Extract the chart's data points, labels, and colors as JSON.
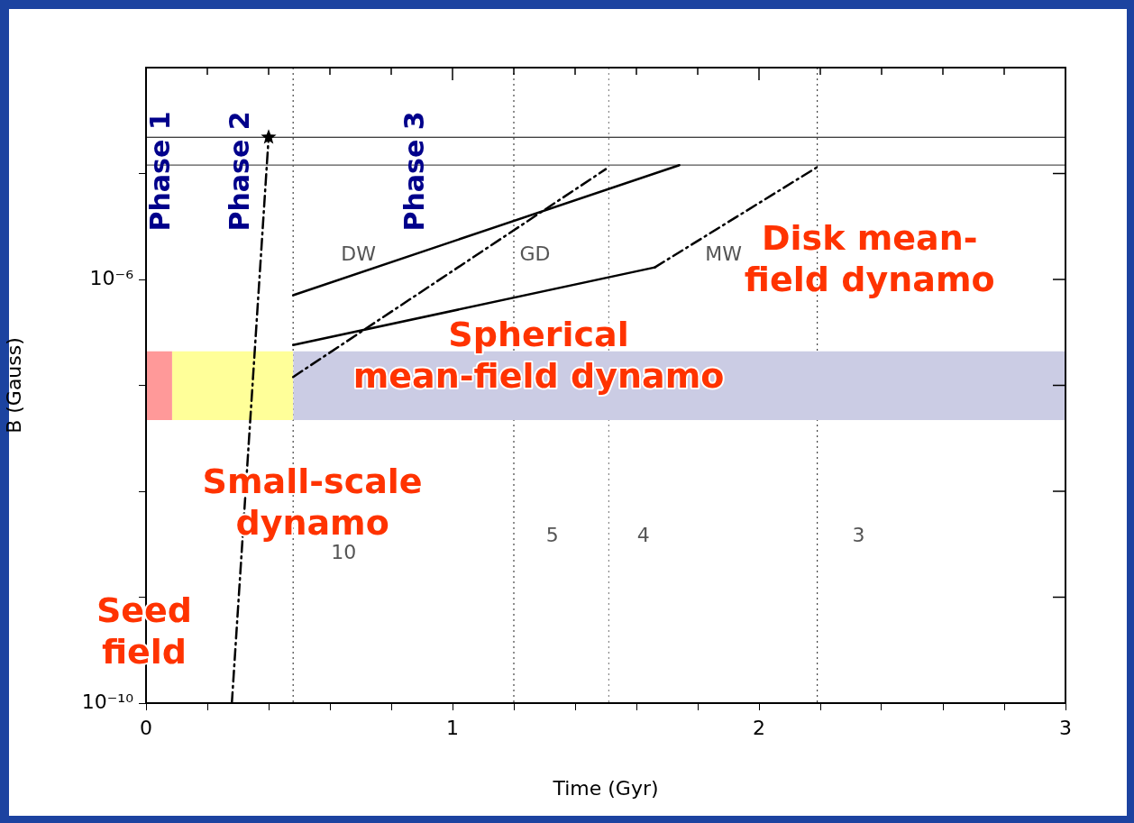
{
  "chart_data": {
    "type": "line",
    "xlabel": "Time (Gyr)",
    "ylabel": "B (Gauss)",
    "xlim": [
      0,
      3
    ],
    "xticks": [
      0,
      {
        "value": 0.2,
        "label": null
      },
      {
        "value": 0.4,
        "label": null
      },
      {
        "value": 0.6,
        "label": null
      },
      {
        "value": 0.8,
        "label": null
      },
      1,
      {
        "value": 1.2,
        "label": null
      },
      {
        "value": 1.4,
        "label": null
      },
      {
        "value": 1.6,
        "label": null
      },
      {
        "value": 1.8,
        "label": null
      },
      2,
      {
        "value": 2.2,
        "label": null
      },
      {
        "value": 2.4,
        "label": null
      },
      {
        "value": 2.6,
        "label": null
      },
      {
        "value": 2.8,
        "label": null
      },
      3
    ],
    "ylim": [
      1e-10,
      0.0001
    ],
    "yticks": [
      {
        "value": 1e-10,
        "label": "10⁻¹⁰"
      },
      {
        "value": 1e-09,
        "label": null
      },
      {
        "value": 1e-08,
        "label": null
      },
      {
        "value": 1e-07,
        "label": null
      },
      {
        "value": 1e-06,
        "label": "10⁻⁶"
      },
      {
        "value": 1e-05,
        "label": null
      }
    ],
    "log": "y",
    "grid": false,
    "legend": false,
    "series": [
      {
        "type": "area",
        "color": "#ff9999",
        "x": [
          0,
          0.085
        ],
        "values": [
          null,
          null
        ],
        "lower": [
          4.7e-08,
          4.7e-08
        ],
        "upper": [
          2.1e-07,
          2.1e-07
        ]
      },
      {
        "type": "area",
        "color": "#ffff99",
        "x": [
          0.085,
          0.48
        ],
        "values": [
          null,
          null
        ],
        "lower": [
          4.7e-08,
          4.7e-08
        ],
        "upper": [
          2.1e-07,
          2.1e-07
        ]
      },
      {
        "type": "area",
        "color": "#cbcce4",
        "x": [
          0.48,
          3
        ],
        "values": [
          null,
          null
        ],
        "lower": [
          4.7e-08,
          4.7e-08
        ],
        "upper": [
          2.1e-07,
          2.1e-07
        ]
      },
      {
        "color": "#000000",
        "line_style": "dashed",
        "x": [
          0.28,
          0.4
        ],
        "values": [
          1e-10,
          2.2e-05
        ]
      },
      {
        "type": "scatter",
        "color": "#000000",
        "marker": "star",
        "x": [
          0.4
        ],
        "values": [
          2.2e-05
        ]
      },
      {
        "color": "#000000",
        "line_style": "solid",
        "x": [
          0.48,
          1.74
        ],
        "values": [
          7.1e-07,
          1.2e-05
        ]
      },
      {
        "color": "#000000",
        "line_style": "dashed",
        "x": [
          0.48,
          1.5
        ],
        "values": [
          1.2e-07,
          1.1e-05
        ]
      },
      {
        "color": "#000000",
        "line_style": "solid",
        "x": [
          0.48,
          1.66
        ],
        "values": [
          2.4e-07,
          1.3e-06
        ]
      },
      {
        "color": "#000000",
        "line_style": "dashed",
        "x": [
          1.66,
          2.19
        ],
        "values": [
          1.3e-06,
          1.15e-05
        ]
      }
    ],
    "ref_lines": [
      {
        "axis": "x",
        "value": 0.48,
        "color": "#444444",
        "line_style": "dotted"
      },
      {
        "axis": "x",
        "value": 1.2,
        "color": "#444444",
        "line_style": "dotted"
      },
      {
        "axis": "x",
        "value": 1.51,
        "color": "#888888",
        "line_style": "dotted"
      },
      {
        "axis": "x",
        "value": 2.19,
        "color": "#444444",
        "line_style": "dotted"
      },
      {
        "axis": "y",
        "value": 2.2e-05,
        "color": "#000000",
        "line_style": "solid"
      },
      {
        "axis": "y",
        "value": 1.2e-05,
        "color": "#555555",
        "line_style": "solid"
      }
    ],
    "annotations": [
      "Phase 1",
      "Phase 2",
      "Phase 3",
      "DW",
      "GD",
      "MW",
      "10",
      "5",
      "4",
      "3",
      "Disk mean-\nfield dynamo",
      "Spherical\nmean-field dynamo",
      "Small-scale\ndynamo",
      "Seed\nfield"
    ]
  }
}
